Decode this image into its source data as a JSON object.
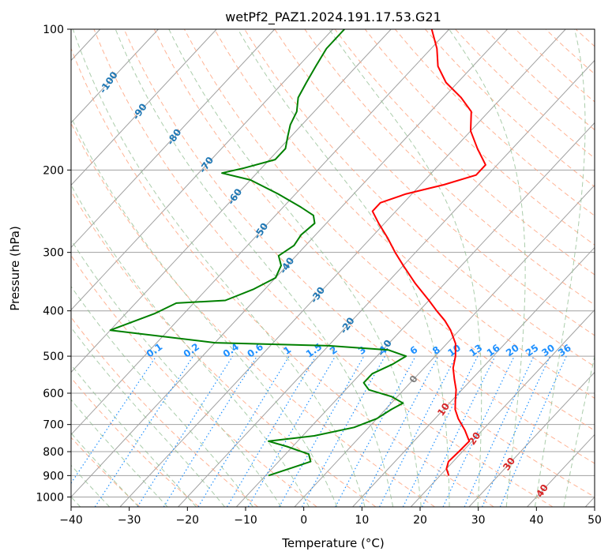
{
  "chart_data": {
    "type": "line",
    "subtype": "skew-T log-P diagram",
    "title": "wetPf2_PAZ1.2024.191.17.53.G21",
    "xlabel": "Temperature (°C)",
    "ylabel": "Pressure (hPa)",
    "xlim": [
      -40,
      50
    ],
    "ylim": [
      1050,
      100
    ],
    "y_scale": "log",
    "grid": true,
    "x_ticks": [
      -40,
      -30,
      -20,
      -10,
      0,
      10,
      20,
      30,
      40,
      50
    ],
    "y_ticks": [
      100,
      200,
      300,
      400,
      500,
      600,
      700,
      800,
      900,
      1000
    ],
    "series": [
      {
        "role": "temperature",
        "color": "#ff0000",
        "points": [
          {
            "p": 900,
            "t": 21.5
          },
          {
            "p": 870,
            "t": 20.0
          },
          {
            "p": 840,
            "t": 19.2
          },
          {
            "p": 800,
            "t": 19.4
          },
          {
            "p": 760,
            "t": 19.5
          },
          {
            "p": 720,
            "t": 17.0
          },
          {
            "p": 680,
            "t": 14.0
          },
          {
            "p": 650,
            "t": 12.0
          },
          {
            "p": 620,
            "t": 10.5
          },
          {
            "p": 590,
            "t": 9.0
          },
          {
            "p": 560,
            "t": 7.0
          },
          {
            "p": 530,
            "t": 5.0
          },
          {
            "p": 500,
            "t": 3.5
          },
          {
            "p": 470,
            "t": 1.5
          },
          {
            "p": 440,
            "t": -1.5
          },
          {
            "p": 420,
            "t": -4.0
          },
          {
            "p": 400,
            "t": -7.0
          },
          {
            "p": 380,
            "t": -10.0
          },
          {
            "p": 350,
            "t": -15.0
          },
          {
            "p": 320,
            "t": -20.0
          },
          {
            "p": 300,
            "t": -23.5
          },
          {
            "p": 280,
            "t": -27.0
          },
          {
            "p": 260,
            "t": -31.0
          },
          {
            "p": 245,
            "t": -34.0
          },
          {
            "p": 235,
            "t": -34.0
          },
          {
            "p": 225,
            "t": -31.0
          },
          {
            "p": 215,
            "t": -26.0
          },
          {
            "p": 205,
            "t": -22.0
          },
          {
            "p": 195,
            "t": -22.0
          },
          {
            "p": 180,
            "t": -26.0
          },
          {
            "p": 165,
            "t": -30.0
          },
          {
            "p": 150,
            "t": -33.0
          },
          {
            "p": 140,
            "t": -37.0
          },
          {
            "p": 130,
            "t": -42.0
          },
          {
            "p": 120,
            "t": -46.0
          },
          {
            "p": 110,
            "t": -49.0
          },
          {
            "p": 100,
            "t": -53.0
          }
        ]
      },
      {
        "role": "dewpoint",
        "color": "#008000",
        "points": [
          {
            "p": 900,
            "t": -9.5
          },
          {
            "p": 870,
            "t": -7.0
          },
          {
            "p": 840,
            "t": -4.5
          },
          {
            "p": 810,
            "t": -6.0
          },
          {
            "p": 780,
            "t": -11.0
          },
          {
            "p": 760,
            "t": -15.0
          },
          {
            "p": 740,
            "t": -8.0
          },
          {
            "p": 710,
            "t": -2.5
          },
          {
            "p": 680,
            "t": 0.0
          },
          {
            "p": 650,
            "t": 1.0
          },
          {
            "p": 630,
            "t": 2.0
          },
          {
            "p": 610,
            "t": -1.0
          },
          {
            "p": 590,
            "t": -6.0
          },
          {
            "p": 570,
            "t": -8.0
          },
          {
            "p": 545,
            "t": -8.0
          },
          {
            "p": 520,
            "t": -6.0
          },
          {
            "p": 500,
            "t": -5.0
          },
          {
            "p": 485,
            "t": -9.0
          },
          {
            "p": 475,
            "t": -20.0
          },
          {
            "p": 468,
            "t": -40.0
          },
          {
            "p": 440,
            "t": -60.0
          },
          {
            "p": 405,
            "t": -55.0
          },
          {
            "p": 385,
            "t": -53.0
          },
          {
            "p": 380,
            "t": -45.0
          },
          {
            "p": 360,
            "t": -42.0
          },
          {
            "p": 340,
            "t": -40.0
          },
          {
            "p": 320,
            "t": -41.0
          },
          {
            "p": 305,
            "t": -43.0
          },
          {
            "p": 290,
            "t": -42.0
          },
          {
            "p": 275,
            "t": -42.5
          },
          {
            "p": 260,
            "t": -42.0
          },
          {
            "p": 250,
            "t": -43.5
          },
          {
            "p": 240,
            "t": -47.0
          },
          {
            "p": 225,
            "t": -53.0
          },
          {
            "p": 210,
            "t": -60.0
          },
          {
            "p": 203,
            "t": -66.0
          },
          {
            "p": 198,
            "t": -63.0
          },
          {
            "p": 190,
            "t": -59.0
          },
          {
            "p": 180,
            "t": -59.0
          },
          {
            "p": 170,
            "t": -60.5
          },
          {
            "p": 160,
            "t": -62.0
          },
          {
            "p": 150,
            "t": -63.0
          },
          {
            "p": 140,
            "t": -65.0
          },
          {
            "p": 130,
            "t": -66.0
          },
          {
            "p": 120,
            "t": -67.0
          },
          {
            "p": 110,
            "t": -68.0
          },
          {
            "p": 100,
            "t": -68.0
          }
        ]
      }
    ],
    "isotherm_labels": [
      {
        "text": "-100",
        "t": -100
      },
      {
        "text": "-90",
        "t": -90
      },
      {
        "text": "-80",
        "t": -80
      },
      {
        "text": "-70",
        "t": -70
      },
      {
        "text": "-60",
        "t": -60
      },
      {
        "text": "-50",
        "t": -50
      },
      {
        "text": "-40",
        "t": -40
      },
      {
        "text": "-30",
        "t": -30
      },
      {
        "text": "-20",
        "t": -20
      },
      {
        "text": "-10",
        "t": -10
      },
      {
        "text": "0",
        "t": 0
      },
      {
        "text": "10",
        "t": 10
      },
      {
        "text": "20",
        "t": 20
      },
      {
        "text": "30",
        "t": 30
      },
      {
        "text": "40",
        "t": 40
      }
    ],
    "mixing_ratio_labels": [
      "0.1",
      "0.2",
      "0.4",
      "0.6",
      "1",
      "1.5",
      "2",
      "3",
      "4",
      "6",
      "8",
      "10",
      "13",
      "16",
      "20",
      "25",
      "30",
      "36"
    ],
    "colors": {
      "cold_isotherm_label": "#1f77b4",
      "zero_isotherm_label": "#808080",
      "warm_isotherm_label": "#d62728",
      "mixing_ratio": "#1e90ff",
      "dry_adiabat": "#ffa07a",
      "moist_adiabat": "#8fbc8f",
      "isotherm": "#a0a0a0",
      "isobar": "#a0a0a0"
    }
  }
}
